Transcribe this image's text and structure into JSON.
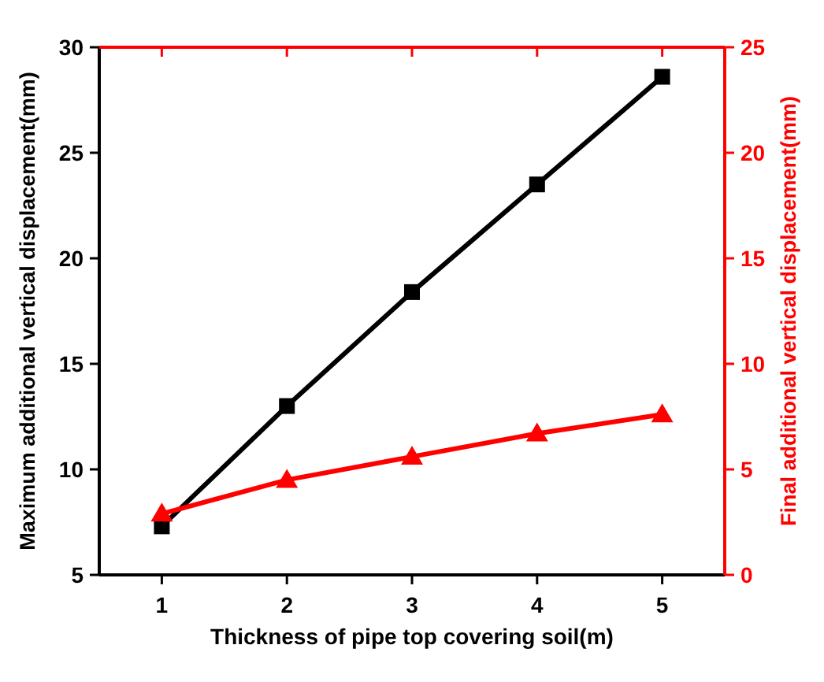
{
  "chart_data": {
    "type": "line",
    "xlabel": "Thickness of pipe top covering soil(m)",
    "ylabel": "Maximum additional vertical displacement(mm)",
    "y2label": "Final additional vertical displacement(mm)",
    "x": [
      1,
      2,
      3,
      4,
      5
    ],
    "xlim": [
      0.5,
      5.5
    ],
    "xticks": [
      1,
      2,
      3,
      4,
      5
    ],
    "ylim": [
      5,
      30
    ],
    "yticks": [
      5,
      10,
      15,
      20,
      25,
      30
    ],
    "y2lim": [
      0,
      25
    ],
    "y2ticks": [
      0,
      5,
      10,
      15,
      20,
      25
    ],
    "grid": false,
    "series": [
      {
        "color": "#000000",
        "marker": "square",
        "values": [
          7.3,
          13.0,
          18.4,
          23.5,
          28.6
        ]
      },
      {
        "color": "#ff0000",
        "marker": "triangle",
        "axis": "y2",
        "values": [
          2.9,
          4.5,
          5.6,
          6.7,
          7.6
        ]
      }
    ]
  }
}
